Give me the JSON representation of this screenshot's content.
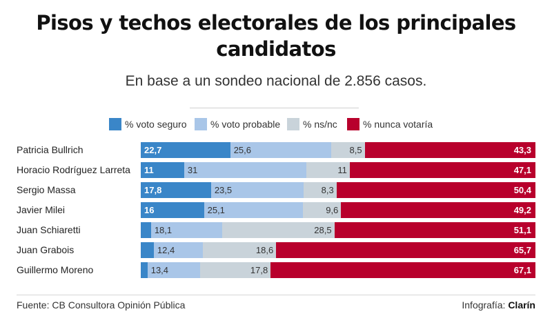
{
  "title_line1": "Pisos y techos electorales de los principales",
  "title_line2": "candidatos",
  "subtitle": "En base a un sondeo nacional de 2.856 casos.",
  "source": "Fuente: CB Consultora Opinión Pública",
  "credit_prefix": "Infografía: ",
  "credit_brand": "Clarín",
  "chart_data": {
    "type": "bar",
    "orientation": "horizontal",
    "stacked": true,
    "title": "Pisos y techos electorales de los principales candidatos",
    "subtitle": "En base a un sondeo nacional de 2.856 casos.",
    "xlim": [
      0,
      100
    ],
    "legend_position": "top",
    "categories": [
      "Patricia Bullrich",
      "Horacio Rodríguez Larreta",
      "Sergio Massa",
      "Javier Milei",
      "Juan Schiaretti",
      "Juan Grabois",
      "Guillermo Moreno"
    ],
    "series": [
      {
        "name": "% voto seguro",
        "color": "#3a86c8",
        "label_color": "#ffffff",
        "values": [
          22.7,
          11,
          17.8,
          16,
          2.6,
          3.3,
          1.7
        ],
        "labels": [
          "22,7",
          "11",
          "17,8",
          "16",
          "",
          "",
          ""
        ]
      },
      {
        "name": "% voto probable",
        "color": "#a9c6e8",
        "label_color": "#333333",
        "values": [
          25.6,
          31,
          23.5,
          25.1,
          18.1,
          12.4,
          13.4
        ],
        "labels": [
          "25,6",
          "31",
          "23,5",
          "25,1",
          "18,1",
          "12,4",
          "13,4"
        ]
      },
      {
        "name": "% ns/nc",
        "color": "#c9d3da",
        "label_color": "#333333",
        "values": [
          8.5,
          11,
          8.3,
          9.6,
          28.5,
          18.6,
          17.8
        ],
        "labels": [
          "8,5",
          "11",
          "8,3",
          "9,6",
          "28,5",
          "18,6",
          "17,8"
        ]
      },
      {
        "name": "% nunca votaría",
        "color": "#b8002c",
        "label_color": "#ffffff",
        "values": [
          43.3,
          47.1,
          50.4,
          49.2,
          51.1,
          65.7,
          67.1
        ],
        "labels": [
          "43,3",
          "47,1",
          "50,4",
          "49,2",
          "51,1",
          "65,7",
          "67,1"
        ]
      }
    ]
  }
}
